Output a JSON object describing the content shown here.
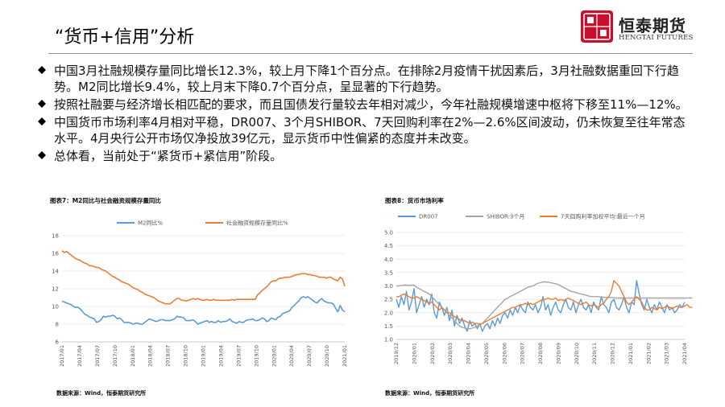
{
  "title": "“货币+信用”分析",
  "logo": {
    "cn": "恒泰期货",
    "en": "HENGTAI FUTURES",
    "mark": "證恒泰"
  },
  "bullets": [
    "中国3月社融规模存量同比增长12.3%，较上月下降1个百分点。在排除2月疫情干扰因素后，3月社融数据重回下行趋势。M2同比增长9.4%，较上月末下降0.7个百分点，呈显著的下行趋势。",
    "按照社融要与经济增长相匹配的要求，而且国债发行量较去年相对减少，今年社融规模增速中枢将下移至11%—12%。",
    "中国货币市场利率4月相对平稳，DR007、3个月SHIBOR、7天回购利率在2%—2.6%区间波动，仍未恢复至往年常态水平。4月央行公开市场仅净投放39亿元，显示货币中性偏紧的态度并未改变。",
    "总体看，当前处于“紧货币+紧信用”阶段。"
  ],
  "colors": {
    "blue": "#5b9bd5",
    "orange": "#ed7d31",
    "gray": "#a5a5a5"
  },
  "chart_data": [
    {
      "type": "line",
      "caption": "图表7：M2同比与社会融资规模存量同比",
      "source": "数据来源：Wind，恒泰期货研究所",
      "ylim": [
        6,
        18
      ],
      "yticks": [
        "6",
        "8",
        "10",
        "12",
        "14",
        "16",
        "18"
      ],
      "xticks": [
        "2017/01",
        "2017/04",
        "2017/07",
        "2017/10",
        "2018/01",
        "2018/04",
        "2018/07",
        "2018/10",
        "2019/01",
        "2019/04",
        "2019/07",
        "2019/10",
        "2020/01",
        "2020/04",
        "2020/07",
        "2020/10",
        "2021/01"
      ],
      "grid": true,
      "legend": "top",
      "series": [
        {
          "name": "M2同比%",
          "color": "#5b9bd5",
          "values": [
            10.6,
            10.5,
            10.4,
            10.3,
            10.2,
            10.0,
            9.9,
            9.9,
            9.7,
            9.4,
            9.1,
            9.0,
            8.8,
            8.7,
            8.6,
            8.2,
            8.3,
            8.5,
            8.9,
            8.8,
            8.9,
            8.9,
            9.0,
            8.9,
            8.6,
            8.7,
            8.5,
            8.2,
            8.2,
            8.2,
            8.1,
            8.0,
            8.1,
            8.1,
            8.0,
            8.0,
            8.2,
            8.4,
            8.6,
            8.5,
            8.4,
            8.3,
            8.4,
            8.5,
            8.5,
            8.4,
            8.4,
            8.4,
            8.5,
            8.6,
            8.9,
            8.8,
            8.8,
            8.7,
            8.4,
            8.4,
            8.4,
            8.5,
            8.3,
            8.0,
            8.1,
            8.2,
            8.3,
            8.4,
            8.2,
            8.3,
            8.2,
            8.2,
            8.4,
            8.2,
            8.3,
            8.3,
            8.4,
            8.6,
            8.3,
            8.2,
            8.1,
            8.3,
            8.2,
            8.2,
            8.4,
            8.5,
            8.5,
            8.6,
            8.4,
            8.4,
            8.5,
            8.7,
            8.6,
            8.3,
            8.4,
            8.7,
            8.6,
            8.5,
            8.8,
            8.9,
            9.2,
            9.3,
            9.4,
            9.5,
            9.9,
            10.1,
            10.4,
            10.6,
            11.0,
            11.1,
            11.0,
            11.1,
            10.9,
            10.7,
            10.5,
            10.4,
            10.7,
            10.9,
            10.6,
            10.5,
            10.4,
            10.4,
            10.3,
            9.8,
            9.4,
            10.1,
            9.6,
            9.4
          ]
        },
        {
          "name": "社会融资规模存量同比%",
          "color": "#ed7d31",
          "values": [
            16.3,
            16.1,
            16.2,
            16.0,
            15.8,
            15.6,
            15.4,
            15.3,
            15.2,
            15.0,
            14.9,
            14.8,
            14.6,
            14.6,
            14.5,
            14.4,
            14.4,
            14.2,
            14.1,
            14.0,
            13.8,
            13.6,
            13.4,
            13.3,
            13.1,
            13.0,
            12.8,
            12.7,
            12.6,
            12.5,
            12.3,
            12.1,
            12.0,
            11.9,
            11.7,
            11.6,
            11.4,
            11.3,
            11.2,
            11.1,
            11.0,
            10.8,
            10.6,
            10.5,
            10.4,
            10.3,
            10.3,
            10.3,
            10.5,
            10.7,
            10.9,
            10.9,
            10.7,
            10.7,
            10.6,
            10.7,
            10.8,
            10.9,
            10.8,
            10.9,
            10.8,
            10.7,
            10.7,
            10.8,
            10.7,
            10.7,
            10.8,
            10.7,
            10.7,
            10.7,
            10.7,
            10.7,
            10.7,
            10.7,
            10.8,
            10.7,
            10.8,
            10.8,
            10.8,
            10.8,
            10.8,
            10.8,
            10.8,
            10.8,
            10.8,
            11.3,
            11.5,
            11.8,
            12.0,
            12.2,
            12.5,
            12.8,
            12.9,
            12.9,
            13.1,
            13.2,
            13.2,
            13.3,
            13.3,
            13.3,
            13.4,
            13.5,
            13.6,
            13.6,
            13.7,
            13.7,
            13.7,
            13.6,
            13.6,
            13.5,
            13.5,
            13.4,
            13.3,
            13.3,
            13.3,
            13.2,
            13.3,
            13.3,
            13.1,
            13.0,
            12.9,
            13.3,
            13.1,
            12.3
          ]
        }
      ]
    },
    {
      "type": "line",
      "caption": "图表8：货币市场利率",
      "source": "数据来源：Wind，恒泰期货研究所",
      "ylim": [
        1.0,
        5.0
      ],
      "yticks": [
        "1.0",
        "1.5",
        "2.0",
        "2.5",
        "3.0",
        "3.5",
        "4.0",
        "4.5",
        "5.0"
      ],
      "xticks": [
        "2019/12",
        "2020/01",
        "2020/02",
        "2020/03",
        "2020/04",
        "2020/05",
        "2020/06",
        "2020/07",
        "2020/08",
        "2020/09",
        "2020/10",
        "2020/11",
        "2020/12",
        "2021/01",
        "2021/02",
        "2021/03",
        "2021/04"
      ],
      "grid": true,
      "legend": "top",
      "series": [
        {
          "name": "DR007",
          "color": "#5b9bd5",
          "values": [
            2.5,
            2.2,
            2.6,
            2.3,
            2.8,
            2.1,
            2.4,
            2.9,
            2.0,
            2.3,
            2.6,
            2.2,
            2.5,
            2.3,
            2.7,
            2.0,
            1.8,
            2.4,
            2.2,
            1.9,
            2.2,
            1.7,
            2.1,
            1.5,
            1.9,
            1.6,
            1.8,
            1.5,
            1.3,
            1.7,
            1.5,
            1.6,
            1.4,
            1.6,
            1.3,
            1.5,
            1.6,
            1.4,
            1.7,
            1.5,
            1.8,
            1.6,
            1.9,
            2.0,
            1.8,
            2.1,
            1.9,
            2.2,
            2.0,
            2.3,
            2.1,
            2.0,
            2.4,
            2.2,
            2.1,
            2.3,
            2.0,
            2.2,
            2.6,
            2.1,
            2.3,
            1.9,
            2.2,
            2.4,
            2.1,
            2.0,
            2.3,
            2.5,
            2.2,
            2.1,
            2.4,
            2.0,
            2.3,
            2.5,
            2.2,
            2.1,
            2.3,
            2.0,
            2.4,
            2.2,
            2.1,
            2.6,
            2.3,
            2.2,
            2.0,
            2.4,
            2.5,
            2.2,
            2.1,
            2.3,
            2.6,
            2.2,
            2.0,
            2.4,
            2.3,
            3.2,
            2.7,
            2.3,
            2.1,
            2.5,
            2.2,
            2.0,
            2.3,
            2.1,
            2.4,
            2.2,
            2.0,
            2.3,
            2.1,
            2.2,
            2.0,
            2.1,
            2.3,
            2.2,
            2.4
          ]
        },
        {
          "name": "SHIBOR:3个月",
          "color": "#a5a5a5",
          "values": [
            3.0,
            3.0,
            3.02,
            3.03,
            3.03,
            3.02,
            3.03,
            3.03,
            2.95,
            2.9,
            2.85,
            2.8,
            2.75,
            2.7,
            2.6,
            2.5,
            2.4,
            2.3,
            2.2,
            2.1,
            2.0,
            1.9,
            1.8,
            1.7,
            1.6,
            1.5,
            1.45,
            1.42,
            1.4,
            1.4,
            1.42,
            1.45,
            1.5,
            1.55,
            1.6,
            1.7,
            1.8,
            1.9,
            2.0,
            2.1,
            2.2,
            2.3,
            2.4,
            2.5,
            2.55,
            2.6,
            2.65,
            2.7,
            2.75,
            2.8,
            2.85,
            2.9,
            2.95,
            2.98,
            3.0,
            3.05,
            3.1,
            3.12,
            3.15,
            3.15,
            3.14,
            3.12,
            3.1,
            3.08,
            3.05,
            3.0,
            2.95,
            2.9,
            2.85,
            2.8,
            2.78,
            2.75,
            2.72,
            2.7,
            2.68,
            2.65,
            2.62,
            2.6,
            2.6,
            2.6,
            2.6,
            2.58,
            2.58,
            2.57,
            2.57,
            2.56,
            2.56,
            2.55,
            2.55,
            2.55,
            2.55,
            2.55,
            2.55,
            2.55,
            2.55,
            2.55,
            2.55,
            2.55,
            2.55,
            2.55,
            2.55,
            2.55,
            2.55,
            2.55,
            2.55,
            2.55,
            2.55,
            2.55,
            2.55,
            2.55,
            2.55,
            2.55,
            2.55,
            2.55,
            2.55,
            2.55,
            2.55,
            2.55
          ]
        },
        {
          "name": "7天回购利率加权平均:最近一个月",
          "color": "#ed7d31",
          "values": [
            2.6,
            2.6,
            2.65,
            2.7,
            2.65,
            2.6,
            2.55,
            2.55,
            2.6,
            2.55,
            2.5,
            2.45,
            2.4,
            2.35,
            2.4,
            2.3,
            2.2,
            2.1,
            2.2,
            2.1,
            2.0,
            2.0,
            1.9,
            1.85,
            1.8,
            1.75,
            1.7,
            1.7,
            1.65,
            1.6,
            1.65,
            1.6,
            1.6,
            1.55,
            1.6,
            1.65,
            1.7,
            1.75,
            1.8,
            1.85,
            1.9,
            1.95,
            2.0,
            2.05,
            2.1,
            2.15,
            2.2,
            2.2,
            2.25,
            2.3,
            2.3,
            2.35,
            2.3,
            2.35,
            2.3,
            2.35,
            2.4,
            2.45,
            2.5,
            2.5,
            2.55,
            2.5,
            2.5,
            2.55,
            2.45,
            2.5,
            2.45,
            2.5,
            2.55,
            2.5,
            2.45,
            2.4,
            2.35,
            2.3,
            2.35,
            2.4,
            2.3,
            2.25,
            2.3,
            2.25,
            2.2,
            2.3,
            2.35,
            2.5,
            2.6,
            2.8,
            3.2,
            3.1,
            3.0,
            2.8,
            2.6,
            2.4,
            2.3,
            2.4,
            2.5,
            2.6,
            2.5,
            2.4,
            2.2,
            2.1,
            2.1,
            2.2,
            2.15,
            2.1,
            2.2,
            2.15,
            2.2,
            2.25,
            2.2,
            2.15,
            2.2,
            2.25,
            2.2,
            2.2,
            2.25,
            2.3,
            2.2,
            2.2
          ]
        }
      ]
    }
  ]
}
